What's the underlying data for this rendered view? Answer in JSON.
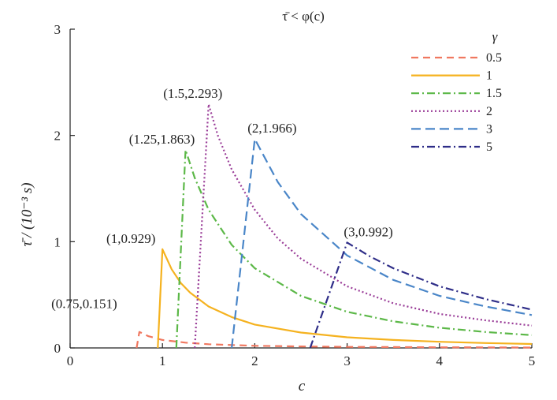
{
  "chart_data": {
    "type": "line",
    "title": "τ̄ < φ(c)",
    "xlabel": "c",
    "ylabel": "τ̄ / (10⁻³ s)",
    "xlim": [
      0,
      5
    ],
    "ylim": [
      0,
      3
    ],
    "x_ticks": [
      "0",
      "1",
      "2",
      "3",
      "4",
      "5"
    ],
    "y_ticks": [
      "0",
      "1",
      "2",
      "3"
    ],
    "grid": false,
    "legend_title": "γ",
    "legend_position": "top-right",
    "series": [
      {
        "name": "0.5",
        "color": "#f07860",
        "dash": "9,6",
        "x": [
          0.72,
          0.75,
          0.85,
          1.0,
          1.25,
          1.5,
          2.0,
          2.5,
          3.0,
          3.5,
          4.0,
          4.5,
          5.0
        ],
        "y": [
          0.0,
          0.151,
          0.11,
          0.075,
          0.05,
          0.035,
          0.02,
          0.014,
          0.01,
          0.008,
          0.006,
          0.005,
          0.004
        ]
      },
      {
        "name": "1",
        "color": "#f5b21f",
        "dash": "",
        "x": [
          0.95,
          1.0,
          1.1,
          1.2,
          1.3,
          1.5,
          1.75,
          2.0,
          2.5,
          3.0,
          3.5,
          4.0,
          4.5,
          5.0
        ],
        "y": [
          0.0,
          0.929,
          0.74,
          0.61,
          0.52,
          0.39,
          0.29,
          0.22,
          0.145,
          0.1,
          0.075,
          0.058,
          0.046,
          0.037
        ]
      },
      {
        "name": "1.5",
        "color": "#5cb848",
        "dash": "10,4,2,4",
        "x": [
          1.15,
          1.25,
          1.35,
          1.5,
          1.75,
          2.0,
          2.5,
          3.0,
          3.5,
          4.0,
          4.5,
          5.0
        ],
        "y": [
          0.0,
          1.863,
          1.6,
          1.3,
          0.97,
          0.75,
          0.49,
          0.34,
          0.25,
          0.19,
          0.15,
          0.12
        ]
      },
      {
        "name": "2",
        "color": "#9a3d98",
        "dash": "2,3",
        "x": [
          1.35,
          1.5,
          1.6,
          1.75,
          2.0,
          2.25,
          2.5,
          3.0,
          3.5,
          4.0,
          4.5,
          5.0
        ],
        "y": [
          0.0,
          2.293,
          2.0,
          1.68,
          1.3,
          1.03,
          0.84,
          0.58,
          0.42,
          0.32,
          0.26,
          0.21
        ]
      },
      {
        "name": "3",
        "color": "#4a86c8",
        "dash": "12,6",
        "x": [
          1.75,
          2.0,
          2.25,
          2.5,
          3.0,
          3.5,
          4.0,
          4.5,
          5.0
        ],
        "y": [
          0.0,
          1.966,
          1.56,
          1.26,
          0.87,
          0.64,
          0.49,
          0.39,
          0.31
        ]
      },
      {
        "name": "5",
        "color": "#2e2d88",
        "dash": "10,4,2,4",
        "x": [
          2.6,
          3.0,
          3.25,
          3.5,
          4.0,
          4.5,
          5.0
        ],
        "y": [
          0.0,
          0.992,
          0.86,
          0.75,
          0.58,
          0.46,
          0.36
        ]
      }
    ],
    "annotations": [
      {
        "text": "(0.75,0.151)",
        "x": 0.75,
        "y": 0.151
      },
      {
        "text": "(1,0.929)",
        "x": 1.0,
        "y": 0.929
      },
      {
        "text": "(1.25,1.863)",
        "x": 1.25,
        "y": 1.863
      },
      {
        "text": "(1.5,2.293)",
        "x": 1.5,
        "y": 2.293
      },
      {
        "text": "(2,1.966)",
        "x": 2.0,
        "y": 1.966
      },
      {
        "text": "(3,0.992)",
        "x": 3.0,
        "y": 0.992
      }
    ]
  }
}
